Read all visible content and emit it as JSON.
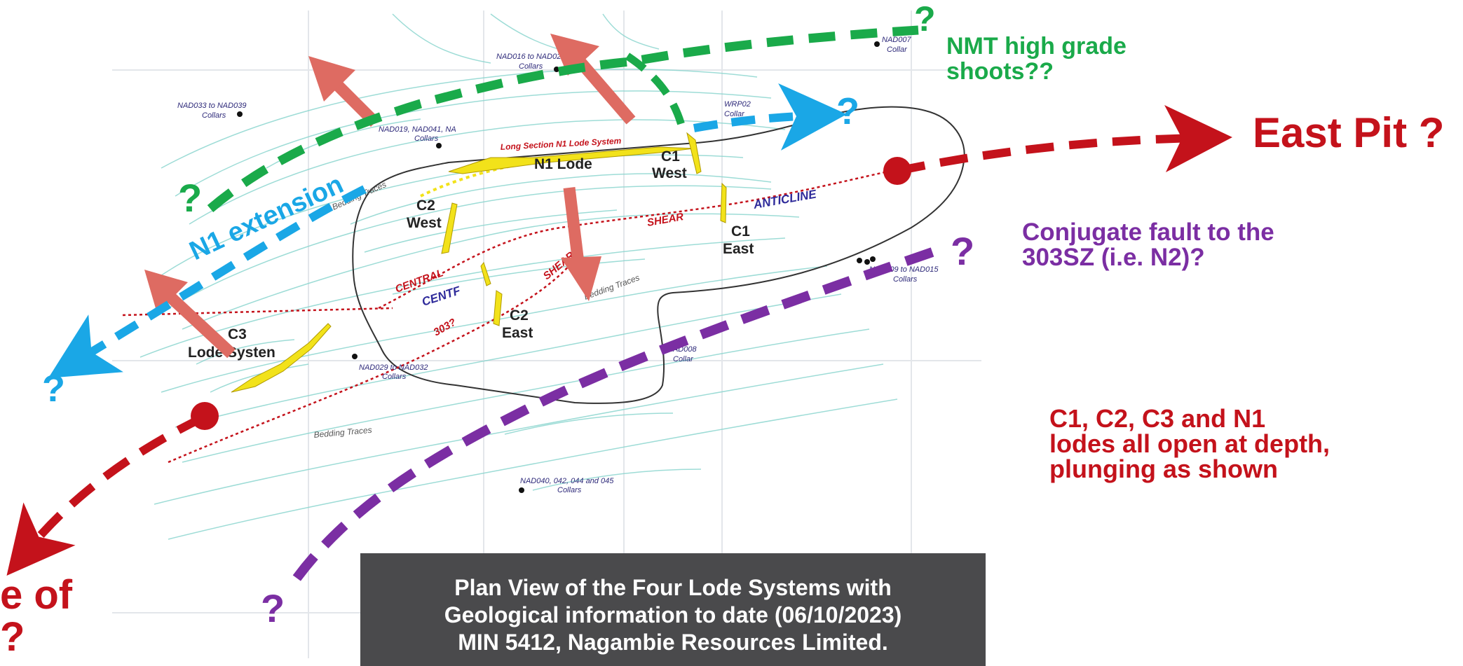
{
  "title_box": {
    "line1": "Plan View of the Four Lode Systems with",
    "line2": "Geological information to date (06/10/2023)",
    "line3": "MIN 5412, Nagambie Resources Limited."
  },
  "annotations": {
    "nmt": "NMT high grade\nshoots??",
    "east_pit": "East Pit ?",
    "conjugate": "Conjugate fault to the\n303SZ (i.e. N2)?",
    "lodes_open": "C1, C2, C3 and N1\nlodes all open at depth,\nplunging as shown",
    "edge_cut": "e of\n?",
    "n1_extension": "N1 extension",
    "q": "?"
  },
  "map_labels": {
    "nad016": "NAD016 to NAD028",
    "collars": "Collars",
    "collar": "Collar",
    "nad007": "NAD007",
    "nad033": "NAD033 to NAD039",
    "nad019": "NAD019, NAD041, NA",
    "wrp02": "WRP02",
    "nad009": "NAD009 to NAD015",
    "nad008": "NAD008",
    "nad029": "NAD029 to NAD032",
    "nad040": "NAD040, 042, 044 and 045",
    "bedding_traces": "Bedding Traces",
    "long_section": "Long Section N1 Lode System",
    "n1_lode": "N1 Lode",
    "c1": "C1",
    "c2": "C2",
    "c3": "C3",
    "west": "West",
    "east": "East",
    "lode_system": "Lode Systen",
    "anticline": "ANTICLINE",
    "shear": "SHEAR",
    "central": "CENTRAL",
    "centf": "CENTF",
    "s303": "303?"
  },
  "colors": {
    "green": "#1aaa4a",
    "blue": "#1aa7e6",
    "red": "#c4121b",
    "salmon": "#de6b62",
    "purple": "#7b2ea3",
    "yellow": "#f2e21a",
    "caption_bg": "#4a4a4c"
  }
}
